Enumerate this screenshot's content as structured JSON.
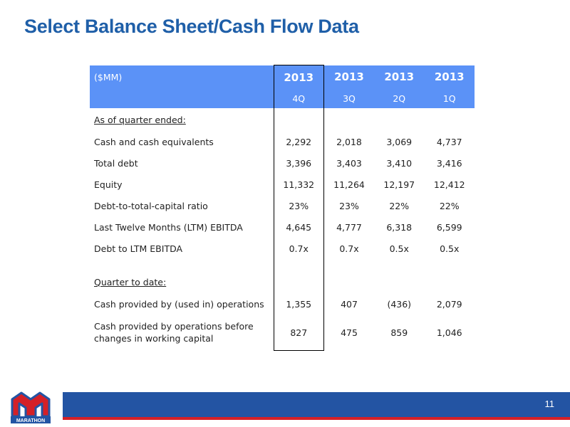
{
  "title": "Select Balance Sheet/Cash Flow Data",
  "table": {
    "unit_label": "($MM)",
    "years": [
      "2013",
      "2013",
      "2013",
      "2013"
    ],
    "quarters": [
      "4Q",
      "3Q",
      "2Q",
      "1Q"
    ],
    "section1": "As of quarter ended:",
    "rows1": [
      {
        "label": "Cash and cash equivalents",
        "values": [
          "2,292",
          "2,018",
          "3,069",
          "4,737"
        ]
      },
      {
        "label": "Total debt",
        "values": [
          "3,396",
          "3,403",
          "3,410",
          "3,416"
        ]
      },
      {
        "label": "Equity",
        "values": [
          "11,332",
          "11,264",
          "12,197",
          "12,412"
        ]
      },
      {
        "label": "Debt-to-total-capital ratio",
        "values": [
          "23%",
          "23%",
          "22%",
          "22%"
        ]
      },
      {
        "label": "Last Twelve Months (LTM) EBITDA",
        "values": [
          "4,645",
          "4,777",
          "6,318",
          "6,599"
        ]
      },
      {
        "label": "Debt to LTM EBITDA",
        "values": [
          "0.7x",
          "0.7x",
          "0.5x",
          "0.5x"
        ]
      }
    ],
    "section2": "Quarter to date:",
    "rows2": [
      {
        "label": "Cash provided by (used in) operations",
        "values": [
          "1,355",
          "407",
          "(436)",
          "2,079"
        ]
      },
      {
        "label": "Cash provided by operations before changes in working capital",
        "values": [
          "827",
          "475",
          "859",
          "1,046"
        ]
      }
    ]
  },
  "footer": {
    "page_number": "11",
    "logo_letter": "M",
    "logo_text": "MARATHON",
    "band_color": "#2354a3",
    "accent_color": "#d42027"
  }
}
